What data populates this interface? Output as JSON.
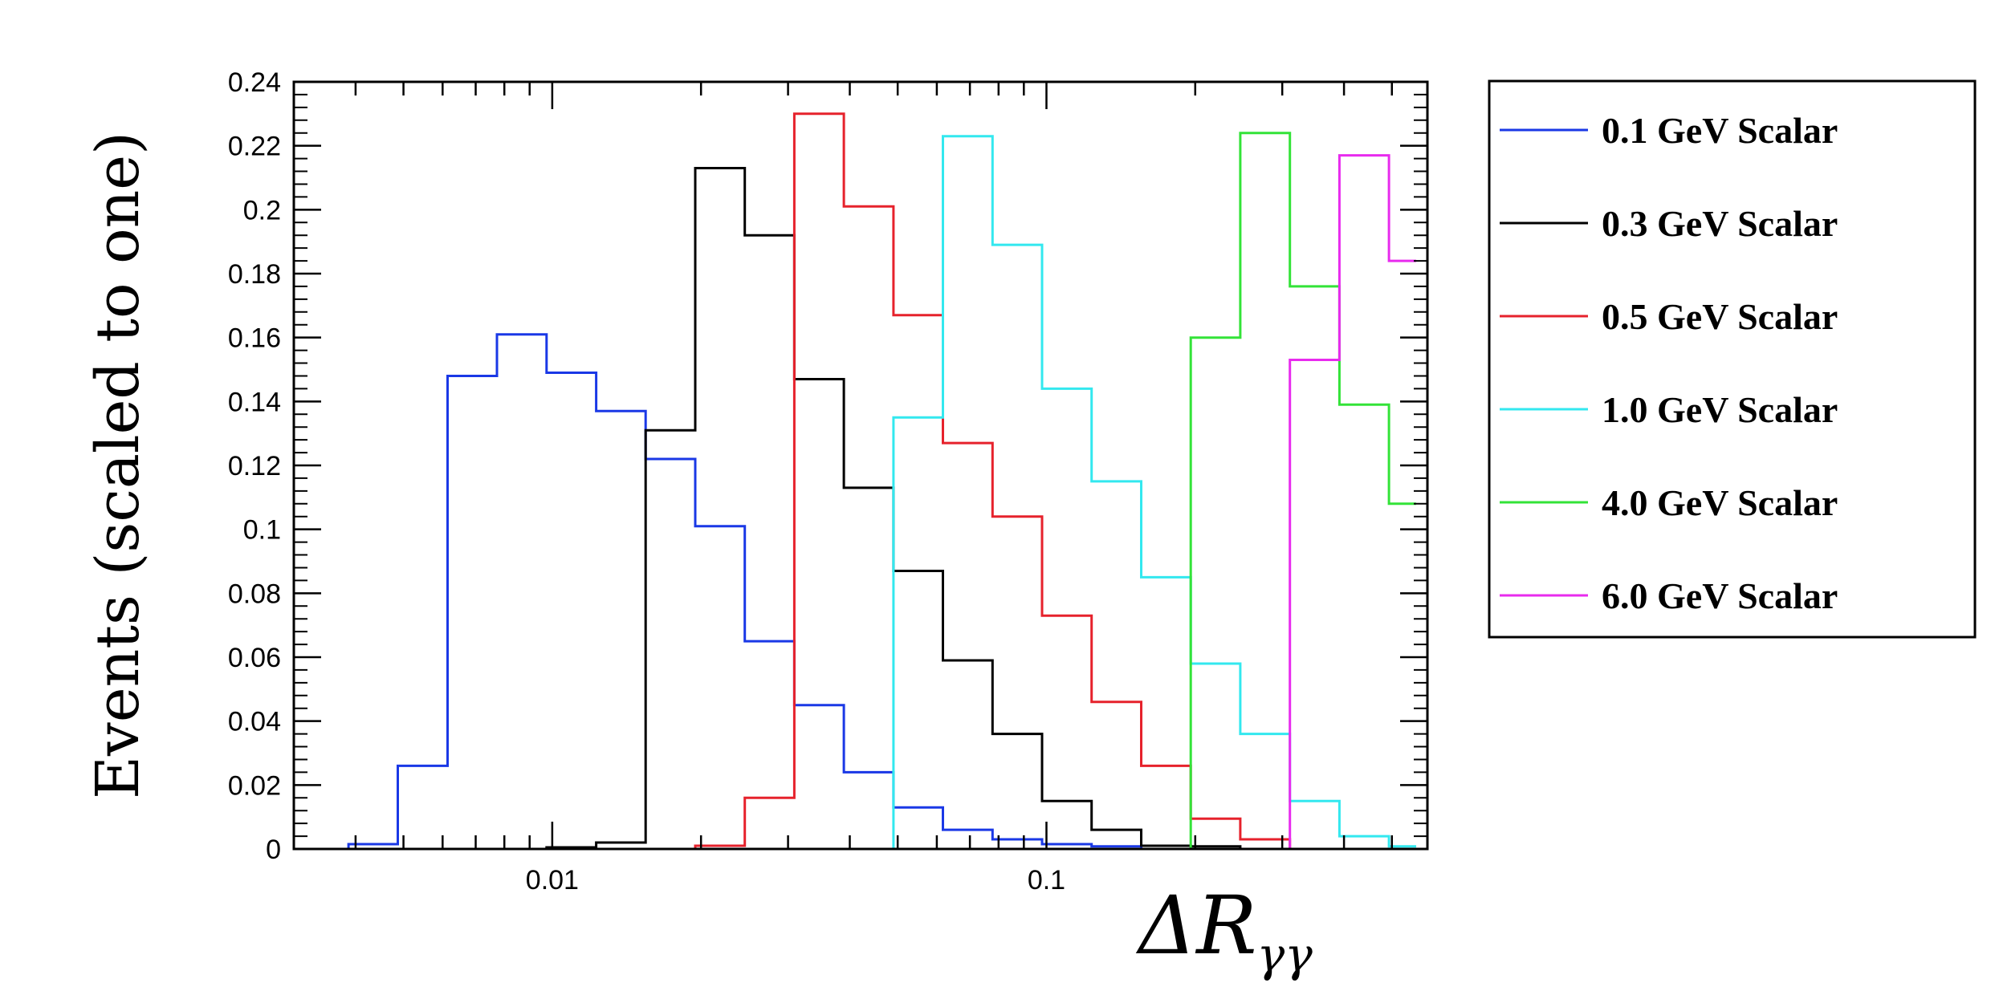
{
  "chart_data": {
    "type": "step-histogram",
    "title": "",
    "xlabel": "ΔR",
    "xlabel_subscript": "γγ",
    "ylabel": "Events (scaled to one)",
    "xscale": "log",
    "xlim": [
      0.003,
      0.59
    ],
    "ylim": [
      0,
      0.24
    ],
    "yticks": [
      0,
      0.02,
      0.04,
      0.06,
      0.08,
      0.1,
      0.12,
      0.14,
      0.16,
      0.18,
      0.2,
      0.22,
      0.24
    ],
    "ytick_labels": [
      "0",
      "0.02",
      "0.04",
      "0.06",
      "0.08",
      "0.1",
      "0.12",
      "0.14",
      "0.16",
      "0.18",
      "0.2",
      "0.22",
      "0.24"
    ],
    "xticks": [
      0.01,
      0.1
    ],
    "xtick_labels": [
      "0.01",
      "0.1"
    ],
    "bin_edges": [
      0.00307,
      0.00387,
      0.00487,
      0.00614,
      0.00773,
      0.00974,
      0.01227,
      0.01545,
      0.01947,
      0.02452,
      0.03089,
      0.03891,
      0.04902,
      0.06174,
      0.07778,
      0.09798,
      0.12343,
      0.15549,
      0.19587,
      0.24675,
      0.31084,
      0.39158,
      0.49329,
      0.56
    ],
    "legend_position": "outside-right",
    "series": [
      {
        "name": "0.1 GeV Scalar",
        "color": "#1a38e6",
        "values": [
          0,
          0.0015,
          0.026,
          0.148,
          0.161,
          0.149,
          0.137,
          0.122,
          0.101,
          0.065,
          0.045,
          0.024,
          0.013,
          0.006,
          0.003,
          0.0015,
          0.0008,
          0,
          0,
          0,
          0,
          0,
          0
        ]
      },
      {
        "name": "0.3 GeV Scalar",
        "color": "#000000",
        "values": [
          0,
          0,
          0,
          0,
          0,
          0.0005,
          0.002,
          0.131,
          0.213,
          0.192,
          0.147,
          0.113,
          0.087,
          0.059,
          0.036,
          0.015,
          0.006,
          0.001,
          0.0008,
          0,
          0,
          0,
          0
        ]
      },
      {
        "name": "0.5 GeV Scalar",
        "color": "#e6222c",
        "values": [
          0,
          0,
          0,
          0,
          0,
          0,
          0,
          0,
          0.001,
          0.016,
          0.23,
          0.201,
          0.167,
          0.127,
          0.104,
          0.073,
          0.046,
          0.026,
          0.0095,
          0.003,
          0,
          0,
          0
        ]
      },
      {
        "name": "1.0 GeV Scalar",
        "color": "#33e8ef",
        "values": [
          0,
          0,
          0,
          0,
          0,
          0,
          0,
          0,
          0,
          0,
          0,
          0,
          0.135,
          0.223,
          0.189,
          0.144,
          0.115,
          0.085,
          0.058,
          0.036,
          0.015,
          0.004,
          0.0008
        ]
      },
      {
        "name": "4.0 GeV Scalar",
        "color": "#33e338",
        "values": [
          0,
          0,
          0,
          0,
          0,
          0,
          0,
          0,
          0,
          0,
          0,
          0,
          0,
          0,
          0,
          0,
          0,
          0,
          0.16,
          0.224,
          0.176,
          0.139,
          0.108
        ]
      },
      {
        "name": "6.0 GeV Scalar",
        "color": "#e82bee",
        "values": [
          0,
          0,
          0,
          0,
          0,
          0,
          0,
          0,
          0,
          0,
          0,
          0,
          0,
          0,
          0,
          0,
          0,
          0,
          0,
          0,
          0.153,
          0.217,
          0.184
        ]
      }
    ]
  }
}
